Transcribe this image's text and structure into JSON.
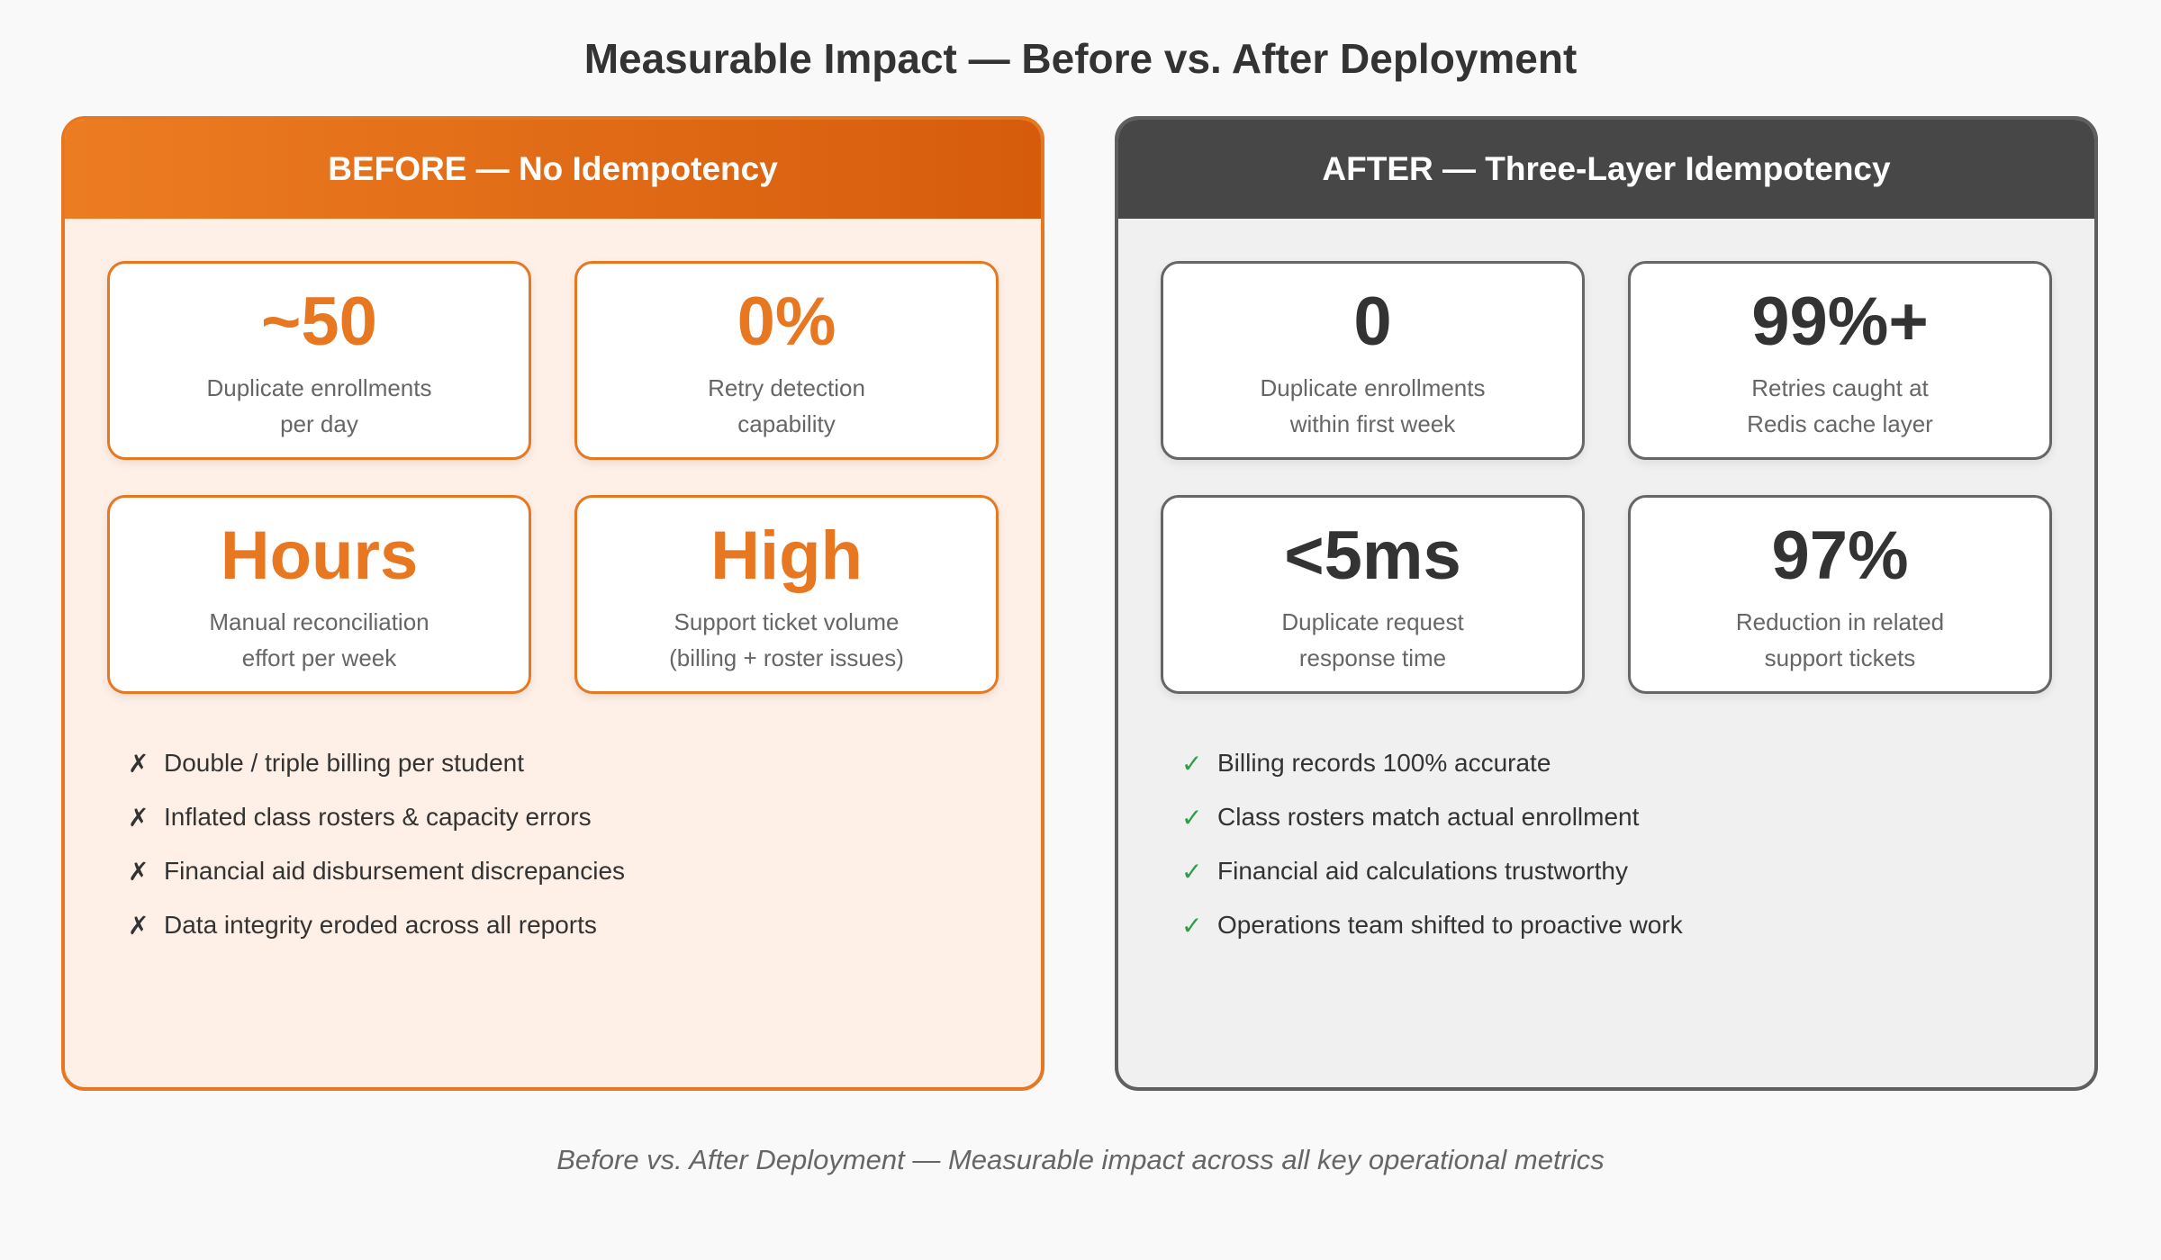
{
  "title": "Measurable Impact — Before vs. After Deployment",
  "colors": {
    "before_accent": "#e87722",
    "after_accent": "#474747",
    "check_green": "#2e9d4a"
  },
  "before": {
    "header": "BEFORE — No Idempotency",
    "metrics": [
      {
        "value": "~50",
        "label": "Duplicate enrollments\nper day"
      },
      {
        "value": "0%",
        "label": "Retry detection\ncapability"
      },
      {
        "value": "Hours",
        "label": "Manual reconciliation\neffort per week"
      },
      {
        "value": "High",
        "label": "Support ticket volume\n(billing + roster issues)"
      }
    ],
    "bullet_icon": "✗",
    "bullets": [
      "Double / triple billing per student",
      "Inflated class rosters & capacity errors",
      "Financial aid disbursement discrepancies",
      "Data integrity eroded across all reports"
    ]
  },
  "after": {
    "header": "AFTER — Three-Layer Idempotency",
    "metrics": [
      {
        "value": "0",
        "label": "Duplicate enrollments\nwithin first week"
      },
      {
        "value": "99%+",
        "label": "Retries caught at\nRedis cache layer"
      },
      {
        "value": "<5ms",
        "label": "Duplicate request\nresponse time"
      },
      {
        "value": "97%",
        "label": "Reduction in related\nsupport tickets"
      }
    ],
    "bullet_icon": "✓",
    "bullets": [
      "Billing records 100% accurate",
      "Class rosters match actual enrollment",
      "Financial aid calculations trustworthy",
      "Operations team shifted to proactive work"
    ]
  },
  "caption": "Before vs. After Deployment — Measurable impact across all key operational metrics"
}
